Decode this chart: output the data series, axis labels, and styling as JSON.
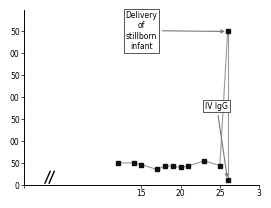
{
  "x_data": [
    12,
    14,
    15,
    17,
    18,
    19,
    20,
    21,
    23,
    25
  ],
  "y_data": [
    50,
    50,
    46,
    35,
    44,
    42,
    40,
    43,
    55,
    44
  ],
  "peak_x": 26,
  "peak_y": 350,
  "drop_x": 26,
  "drop_y": 10,
  "xlim": [
    0,
    30
  ],
  "ylim": [
    0,
    400
  ],
  "ytick_vals": [
    0,
    50,
    100,
    150,
    200,
    250,
    300,
    350
  ],
  "ytick_labels": [
    "0",
    "50",
    "00",
    "50",
    "00",
    "50",
    "00",
    "50"
  ],
  "xtick_vals": [
    0,
    15,
    20,
    25,
    30
  ],
  "xtick_labels": [
    "",
    "15",
    "20",
    "25",
    "3"
  ],
  "delivery_label": "Delivery\nof\nstillborn\ninfant",
  "ivigg_label": "IV IgG",
  "line_color": "#999999",
  "marker_color": "#111111",
  "background": "#ffffff"
}
